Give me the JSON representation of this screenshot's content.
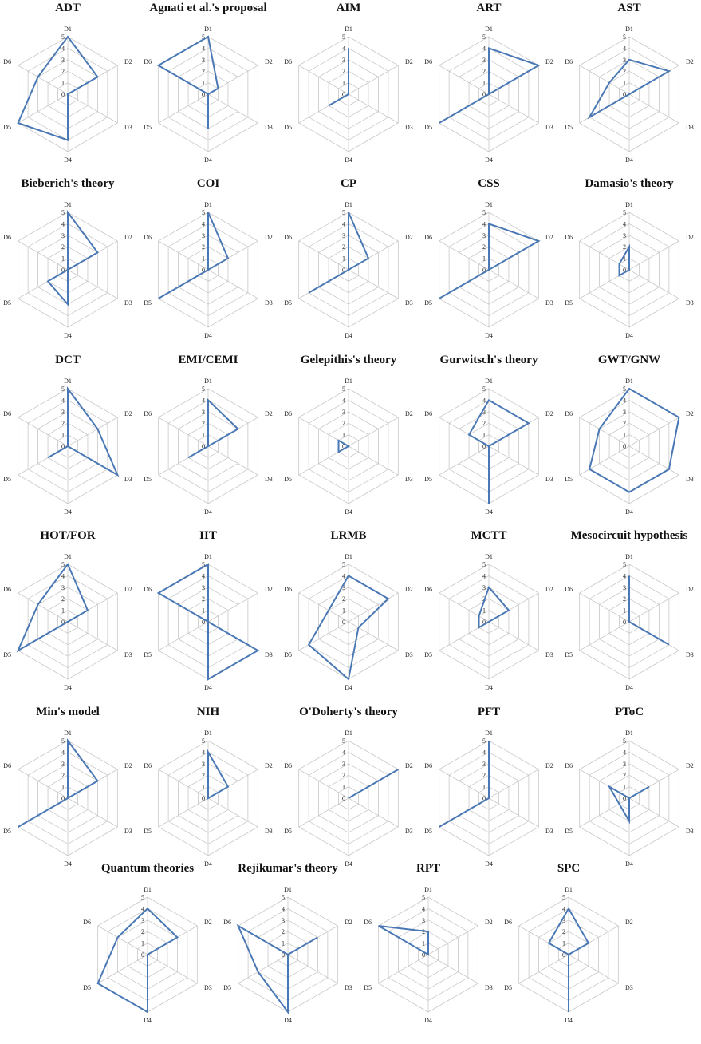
{
  "chart_data": {
    "type": "radar",
    "axes": [
      "D1",
      "D2",
      "D3",
      "D4",
      "D5",
      "D6"
    ],
    "rlim": [
      0,
      5
    ],
    "ticks": [
      "0",
      "1",
      "2",
      "3",
      "4",
      "5"
    ],
    "grid": true,
    "line_color": "#4a78b5",
    "grid_color": "#c8c8c8",
    "charts": [
      {
        "title": "ADT",
        "values": [
          5,
          3,
          0,
          4,
          5,
          3
        ]
      },
      {
        "title": "Agnati et al.'s proposal",
        "values": [
          5,
          1,
          0,
          3,
          0,
          5
        ]
      },
      {
        "title": "AIM",
        "values": [
          4,
          0,
          0,
          0,
          2,
          0
        ]
      },
      {
        "title": "ART",
        "values": [
          4,
          5,
          0,
          0,
          5,
          0
        ]
      },
      {
        "title": "AST",
        "values": [
          3,
          4,
          0,
          0,
          4,
          2
        ]
      },
      {
        "title": "Bieberich's theory",
        "values": [
          5,
          3,
          0,
          3,
          2,
          0
        ]
      },
      {
        "title": "COI",
        "values": [
          5,
          2,
          0,
          0,
          5,
          0
        ]
      },
      {
        "title": "CP",
        "values": [
          5,
          2,
          0,
          0,
          4,
          0
        ]
      },
      {
        "title": "CSS",
        "values": [
          4,
          5,
          0,
          0,
          5,
          0
        ]
      },
      {
        "title": "Damasio's theory",
        "values": [
          2,
          0,
          0,
          0,
          1,
          1
        ]
      },
      {
        "title": "DCT",
        "values": [
          5,
          3,
          5,
          0,
          2,
          0
        ]
      },
      {
        "title": "EMI/CEMI",
        "values": [
          4,
          3,
          0,
          0,
          2,
          0
        ]
      },
      {
        "title": "Gelepithis's theory",
        "values": [
          0,
          0,
          0,
          0,
          1,
          1
        ]
      },
      {
        "title": "Gurwitsch's theory",
        "values": [
          4,
          4,
          0,
          5,
          0,
          2
        ]
      },
      {
        "title": "GWT/GNW",
        "values": [
          5,
          5,
          4,
          4,
          4,
          3
        ]
      },
      {
        "title": "HOT/FOR",
        "values": [
          5,
          2,
          0,
          0,
          5,
          3
        ]
      },
      {
        "title": "IIT",
        "values": [
          5,
          0,
          5,
          5,
          0,
          5
        ]
      },
      {
        "title": "LRMB",
        "values": [
          4,
          4,
          1,
          5,
          4,
          2
        ]
      },
      {
        "title": "MCTT",
        "values": [
          3,
          2,
          0,
          0,
          1,
          1
        ]
      },
      {
        "title": "Mesocircuit hypothesis",
        "values": [
          4,
          0,
          4,
          0,
          0,
          0
        ]
      },
      {
        "title": "Min's model",
        "values": [
          5,
          3,
          0,
          0,
          5,
          0
        ]
      },
      {
        "title": "NIH",
        "values": [
          4,
          2,
          0,
          0,
          0,
          0
        ]
      },
      {
        "title": "O'Doherty's theory",
        "values": [
          0,
          5,
          0,
          0,
          0,
          0
        ]
      },
      {
        "title": "PFT",
        "values": [
          5,
          0,
          0,
          0,
          5,
          0
        ]
      },
      {
        "title": "PToC",
        "values": [
          0,
          2,
          0,
          2,
          1,
          2
        ]
      },
      {
        "title": "Quantum theories",
        "values": [
          4,
          3,
          0,
          5,
          5,
          3
        ]
      },
      {
        "title": "Rejikumar's theory",
        "values": [
          0,
          3,
          0,
          5,
          3,
          5
        ]
      },
      {
        "title": "RPT",
        "values": [
          2,
          0,
          0,
          0,
          0,
          5
        ]
      },
      {
        "title": "SPC",
        "values": [
          4,
          2,
          0,
          5,
          0,
          2
        ]
      }
    ]
  }
}
